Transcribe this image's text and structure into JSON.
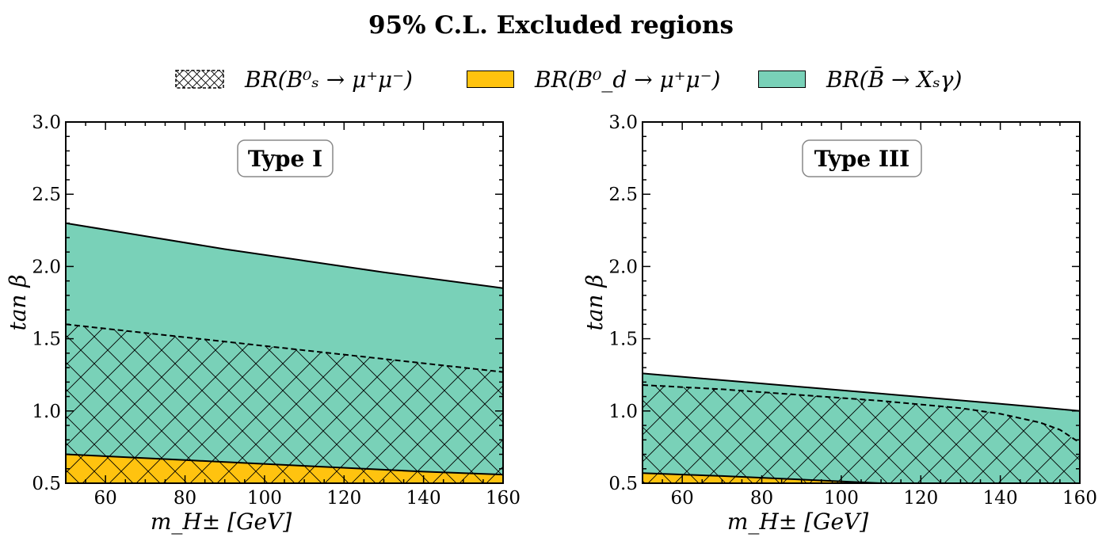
{
  "title": "95% C.L. Excluded regions",
  "legend": [
    {
      "label": "BR(B⁰ₛ → μ⁺μ⁻)",
      "style": "hatch",
      "color": "#ffffff"
    },
    {
      "label": "BR(B⁰_d → μ⁺μ⁻)",
      "style": "fill",
      "color": "#ffc30f"
    },
    {
      "label": "BR(B̄ → Xₛγ)",
      "style": "fill",
      "color": "#79d1b8"
    }
  ],
  "colors": {
    "bsgamma": "#79d1b8",
    "bd": "#ffc30f",
    "edge": "#000000"
  },
  "chart_data": [
    {
      "type": "area",
      "annotation": "Type I",
      "xlabel": "m_H± [GeV]",
      "ylabel": "tan β",
      "xlim": [
        50,
        160
      ],
      "ylim": [
        0.5,
        3.0
      ],
      "xticks": [
        60,
        80,
        100,
        120,
        140,
        160
      ],
      "xtick_labels": [
        "60",
        "80",
        "100",
        "120",
        "140",
        "160"
      ],
      "yticks": [
        0.5,
        1.0,
        1.5,
        2.0,
        2.5,
        3.0
      ],
      "ytick_labels": [
        "0.5",
        "1.0",
        "1.5",
        "2.0",
        "2.5",
        "3.0"
      ],
      "grid": false,
      "series": [
        {
          "name": "BR(B̄ → Xₛγ)",
          "x": [
            50,
            70,
            90,
            110,
            130,
            160
          ],
          "y": [
            2.3,
            2.21,
            2.12,
            2.04,
            1.96,
            1.85
          ]
        },
        {
          "name": "BR(B⁰ₛ → μ⁺μ⁻)",
          "x": [
            50,
            70,
            90,
            110,
            130,
            160
          ],
          "y": [
            1.6,
            1.54,
            1.48,
            1.42,
            1.36,
            1.27
          ]
        },
        {
          "name": "BR(B⁰_d → μ⁺μ⁻)",
          "x": [
            50,
            80,
            110,
            140,
            160
          ],
          "y": [
            0.7,
            0.66,
            0.62,
            0.58,
            0.56
          ]
        }
      ]
    },
    {
      "type": "area",
      "annotation": "Type III",
      "xlabel": "m_H± [GeV]",
      "ylabel": "tan β",
      "xlim": [
        50,
        160
      ],
      "ylim": [
        0.5,
        3.0
      ],
      "xticks": [
        60,
        80,
        100,
        120,
        140,
        160
      ],
      "xtick_labels": [
        "60",
        "80",
        "100",
        "120",
        "140",
        "160"
      ],
      "yticks": [
        0.5,
        1.0,
        1.5,
        2.0,
        2.5,
        3.0
      ],
      "ytick_labels": [
        "0.5",
        "1.0",
        "1.5",
        "2.0",
        "2.5",
        "3.0"
      ],
      "grid": false,
      "series": [
        {
          "name": "BR(B̄ → Xₛγ)",
          "x": [
            50,
            80,
            110,
            140,
            160
          ],
          "y": [
            1.26,
            1.19,
            1.12,
            1.05,
            1.0
          ]
        },
        {
          "name": "BR(B⁰ₛ → μ⁺μ⁻)",
          "x": [
            50,
            70,
            90,
            110,
            130,
            140,
            150,
            155,
            160
          ],
          "y": [
            1.18,
            1.15,
            1.11,
            1.07,
            1.02,
            0.98,
            0.92,
            0.87,
            0.78
          ]
        },
        {
          "name": "BR(B⁰_d → μ⁺μ⁻)",
          "x": [
            50,
            70,
            90,
            110
          ],
          "y": [
            0.57,
            0.55,
            0.525,
            0.5
          ]
        }
      ]
    }
  ]
}
